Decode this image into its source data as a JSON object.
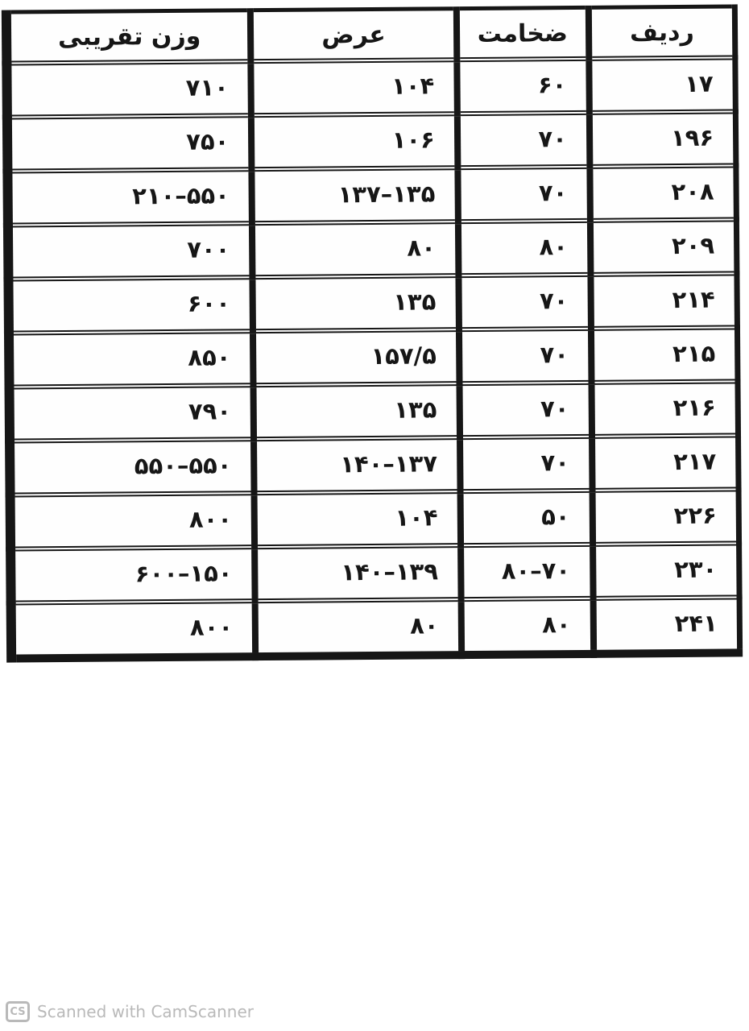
{
  "colors": {
    "ink": "#161616",
    "paper": "#ffffff",
    "watermark": "#b9b9b9"
  },
  "table": {
    "columns": [
      {
        "key": "weight",
        "label": "وزن تقریبی"
      },
      {
        "key": "width",
        "label": "عرض"
      },
      {
        "key": "thickness",
        "label": "ضخامت"
      },
      {
        "key": "radif",
        "label": "ردیف"
      }
    ],
    "rows": [
      {
        "radif": "۱۷",
        "thickness": "۶۰",
        "width": "۱۰۴",
        "weight": "۷۱۰"
      },
      {
        "radif": "۱۹۶",
        "thickness": "۷۰",
        "width": "۱۰۶",
        "weight": "۷۵۰"
      },
      {
        "radif": "۲۰۸",
        "thickness": "۷۰",
        "width": "۱۳۷–۱۳۵",
        "weight": "۲۱۰–۵۵۰"
      },
      {
        "radif": "۲۰۹",
        "thickness": "۸۰",
        "width": "۸۰",
        "weight": "۷۰۰"
      },
      {
        "radif": "۲۱۴",
        "thickness": "۷۰",
        "width": "۱۳۵",
        "weight": "۶۰۰"
      },
      {
        "radif": "۲۱۵",
        "thickness": "۷۰",
        "width": "۱۵۷/۵",
        "weight": "۸۵۰"
      },
      {
        "radif": "۲۱۶",
        "thickness": "۷۰",
        "width": "۱۳۵",
        "weight": "۷۹۰"
      },
      {
        "radif": "۲۱۷",
        "thickness": "۷۰",
        "width": "۱۴۰–۱۳۷",
        "weight": "۵۵۰–۵۵۰"
      },
      {
        "radif": "۲۲۶",
        "thickness": "۵۰",
        "width": "۱۰۴",
        "weight": "۸۰۰"
      },
      {
        "radif": "۲۳۰",
        "thickness": "۸۰–۷۰",
        "width": "۱۴۰–۱۳۹",
        "weight": "۶۰۰–۱۵۰"
      },
      {
        "radif": "۲۴۱",
        "thickness": "۸۰",
        "width": "۸۰",
        "weight": "۸۰۰"
      }
    ]
  },
  "watermark": {
    "logo": "CS",
    "text": "Scanned with CamScanner"
  }
}
